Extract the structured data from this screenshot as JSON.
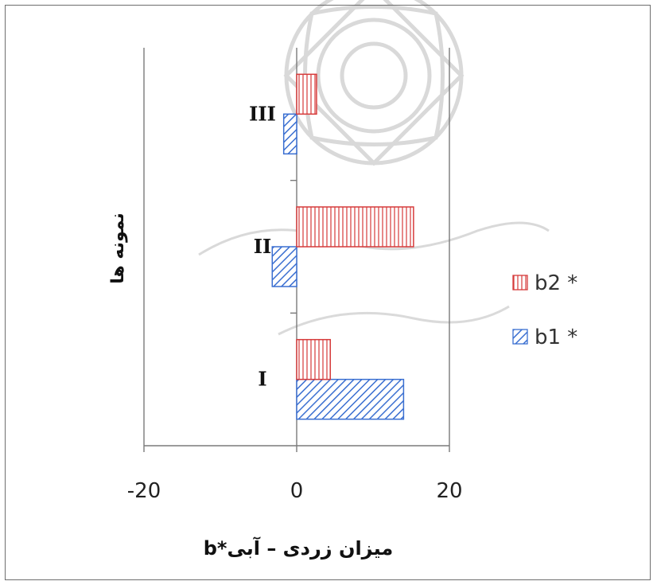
{
  "chart_data": {
    "type": "bar",
    "orientation": "horizontal",
    "categories": [
      "I",
      "II",
      "III"
    ],
    "series": [
      {
        "name": "b1 *",
        "values": [
          14,
          -3.2,
          -1.7
        ],
        "color": "#3a6fd1",
        "pattern": "diagonal-hatch"
      },
      {
        "name": "b2 *",
        "values": [
          4.4,
          15.3,
          2.6
        ],
        "color": "#d63a3a",
        "pattern": "vertical-hatch"
      }
    ],
    "xlim": [
      -20,
      20
    ],
    "x_ticks": [
      "-20",
      "0",
      "20"
    ],
    "xlabel": "میزان زردی – آبی*b",
    "ylabel": "نمونه ها",
    "grid": "vertical lines at -20 and 20",
    "legend_position": "right",
    "legend_order": [
      "b2 *",
      "b1 *"
    ]
  }
}
